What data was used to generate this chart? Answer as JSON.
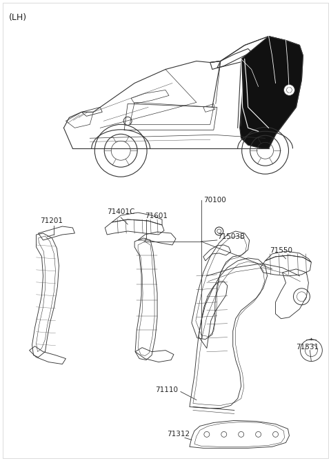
{
  "title": "(LH)",
  "background_color": "#ffffff",
  "fig_width": 4.8,
  "fig_height": 6.68,
  "dpi": 100,
  "label_fontsize": 7.5,
  "title_fontsize": 9,
  "line_color": "#333333"
}
